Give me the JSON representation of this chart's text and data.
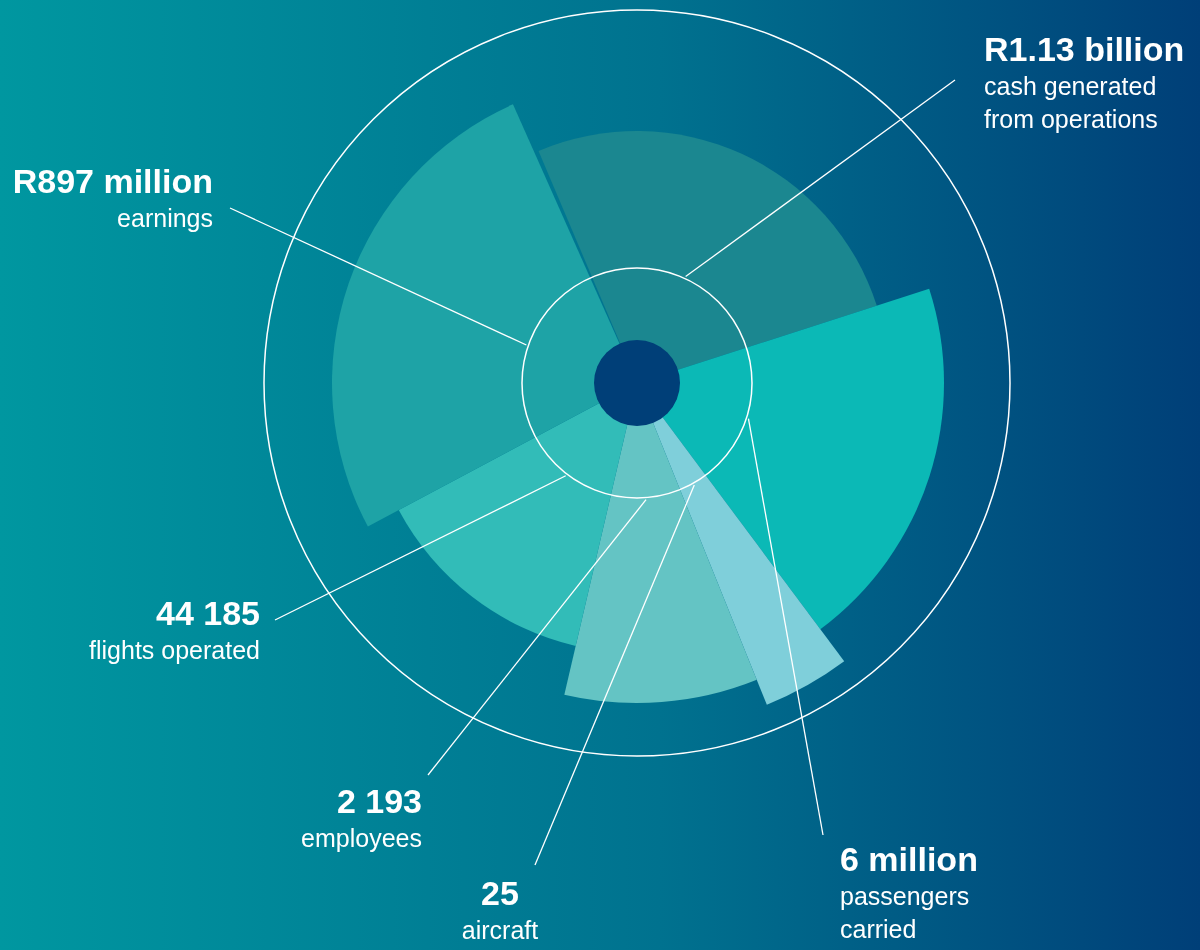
{
  "chart_data": {
    "type": "other",
    "categories": [
      "cash generated from operations",
      "passengers carried",
      "aircraft",
      "employees",
      "flights operated",
      "earnings"
    ],
    "value_labels": [
      "R1.13 billion",
      "6 million",
      "25",
      "2 193",
      "44 185",
      "R897 million"
    ],
    "values": [
      1130000000,
      6000000,
      25,
      2193,
      44185,
      897000000
    ],
    "colors": [
      "#1b8790",
      "#0bb9b6",
      "#7fcfda",
      "#64c4c4",
      "#32bcb8",
      "#1ea3a6"
    ]
  }
}
